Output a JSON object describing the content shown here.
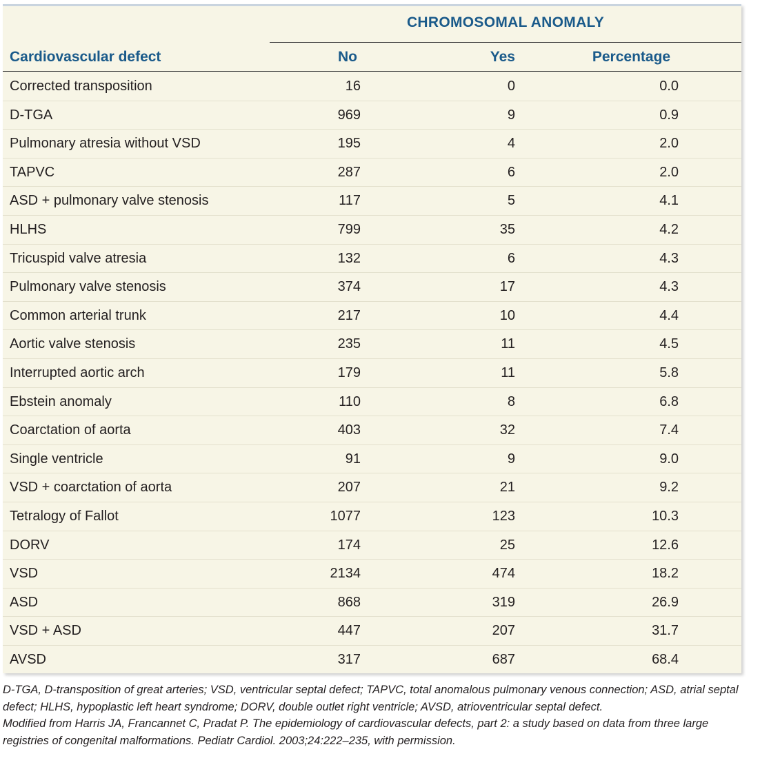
{
  "table": {
    "group_header": "CHROMOSOMAL ANOMALY",
    "columns": [
      "Cardiovascular defect",
      "No",
      "Yes",
      "Percentage"
    ],
    "rows": [
      {
        "defect": "Corrected transposition",
        "no": "16",
        "yes": "0",
        "pct": "0.0"
      },
      {
        "defect": "D-TGA",
        "no": "969",
        "yes": "9",
        "pct": "0.9"
      },
      {
        "defect": "Pulmonary atresia without VSD",
        "no": "195",
        "yes": "4",
        "pct": "2.0"
      },
      {
        "defect": "TAPVC",
        "no": "287",
        "yes": "6",
        "pct": "2.0"
      },
      {
        "defect": "ASD + pulmonary valve stenosis",
        "no": "117",
        "yes": "5",
        "pct": "4.1"
      },
      {
        "defect": "HLHS",
        "no": "799",
        "yes": "35",
        "pct": "4.2"
      },
      {
        "defect": "Tricuspid valve atresia",
        "no": "132",
        "yes": "6",
        "pct": "4.3"
      },
      {
        "defect": "Pulmonary valve stenosis",
        "no": "374",
        "yes": "17",
        "pct": "4.3"
      },
      {
        "defect": "Common arterial trunk",
        "no": "217",
        "yes": "10",
        "pct": "4.4"
      },
      {
        "defect": "Aortic valve stenosis",
        "no": "235",
        "yes": "11",
        "pct": "4.5"
      },
      {
        "defect": "Interrupted aortic arch",
        "no": "179",
        "yes": "11",
        "pct": "5.8"
      },
      {
        "defect": "Ebstein anomaly",
        "no": "110",
        "yes": "8",
        "pct": "6.8"
      },
      {
        "defect": "Coarctation of aorta",
        "no": "403",
        "yes": "32",
        "pct": "7.4"
      },
      {
        "defect": "Single ventricle",
        "no": "91",
        "yes": "9",
        "pct": "9.0"
      },
      {
        "defect": "VSD + coarctation of aorta",
        "no": "207",
        "yes": "21",
        "pct": "9.2"
      },
      {
        "defect": "Tetralogy of Fallot",
        "no": "1077",
        "yes": "123",
        "pct": "10.3"
      },
      {
        "defect": "DORV",
        "no": "174",
        "yes": "25",
        "pct": "12.6"
      },
      {
        "defect": "VSD",
        "no": "2134",
        "yes": "474",
        "pct": "18.2"
      },
      {
        "defect": "ASD",
        "no": "868",
        "yes": "319",
        "pct": "26.9"
      },
      {
        "defect": "VSD + ASD",
        "no": "447",
        "yes": "207",
        "pct": "31.7"
      },
      {
        "defect": "AVSD",
        "no": "317",
        "yes": "687",
        "pct": "68.4"
      }
    ]
  },
  "footnotes": {
    "abbreviations": "D-TGA, D-transposition of great arteries; VSD, ventricular septal defect; TAPVC, total anomalous pulmonary venous connection; ASD, atrial septal defect; HLHS, hypoplastic left heart syndrome; DORV, double outlet right ventricle; AVSD, atrioventricular septal defect.",
    "source": "Modified from Harris JA, Francannet C, Pradat P. The epidemiology of cardiovascular defects, part 2: a study based on data from three large registries of congenital malformations. Pediatr Cardiol. 2003;24:222–235, with permission."
  },
  "colors": {
    "panel_background": "#f7f5e6",
    "header_text": "#1a5a8a",
    "body_text": "#231f20"
  }
}
